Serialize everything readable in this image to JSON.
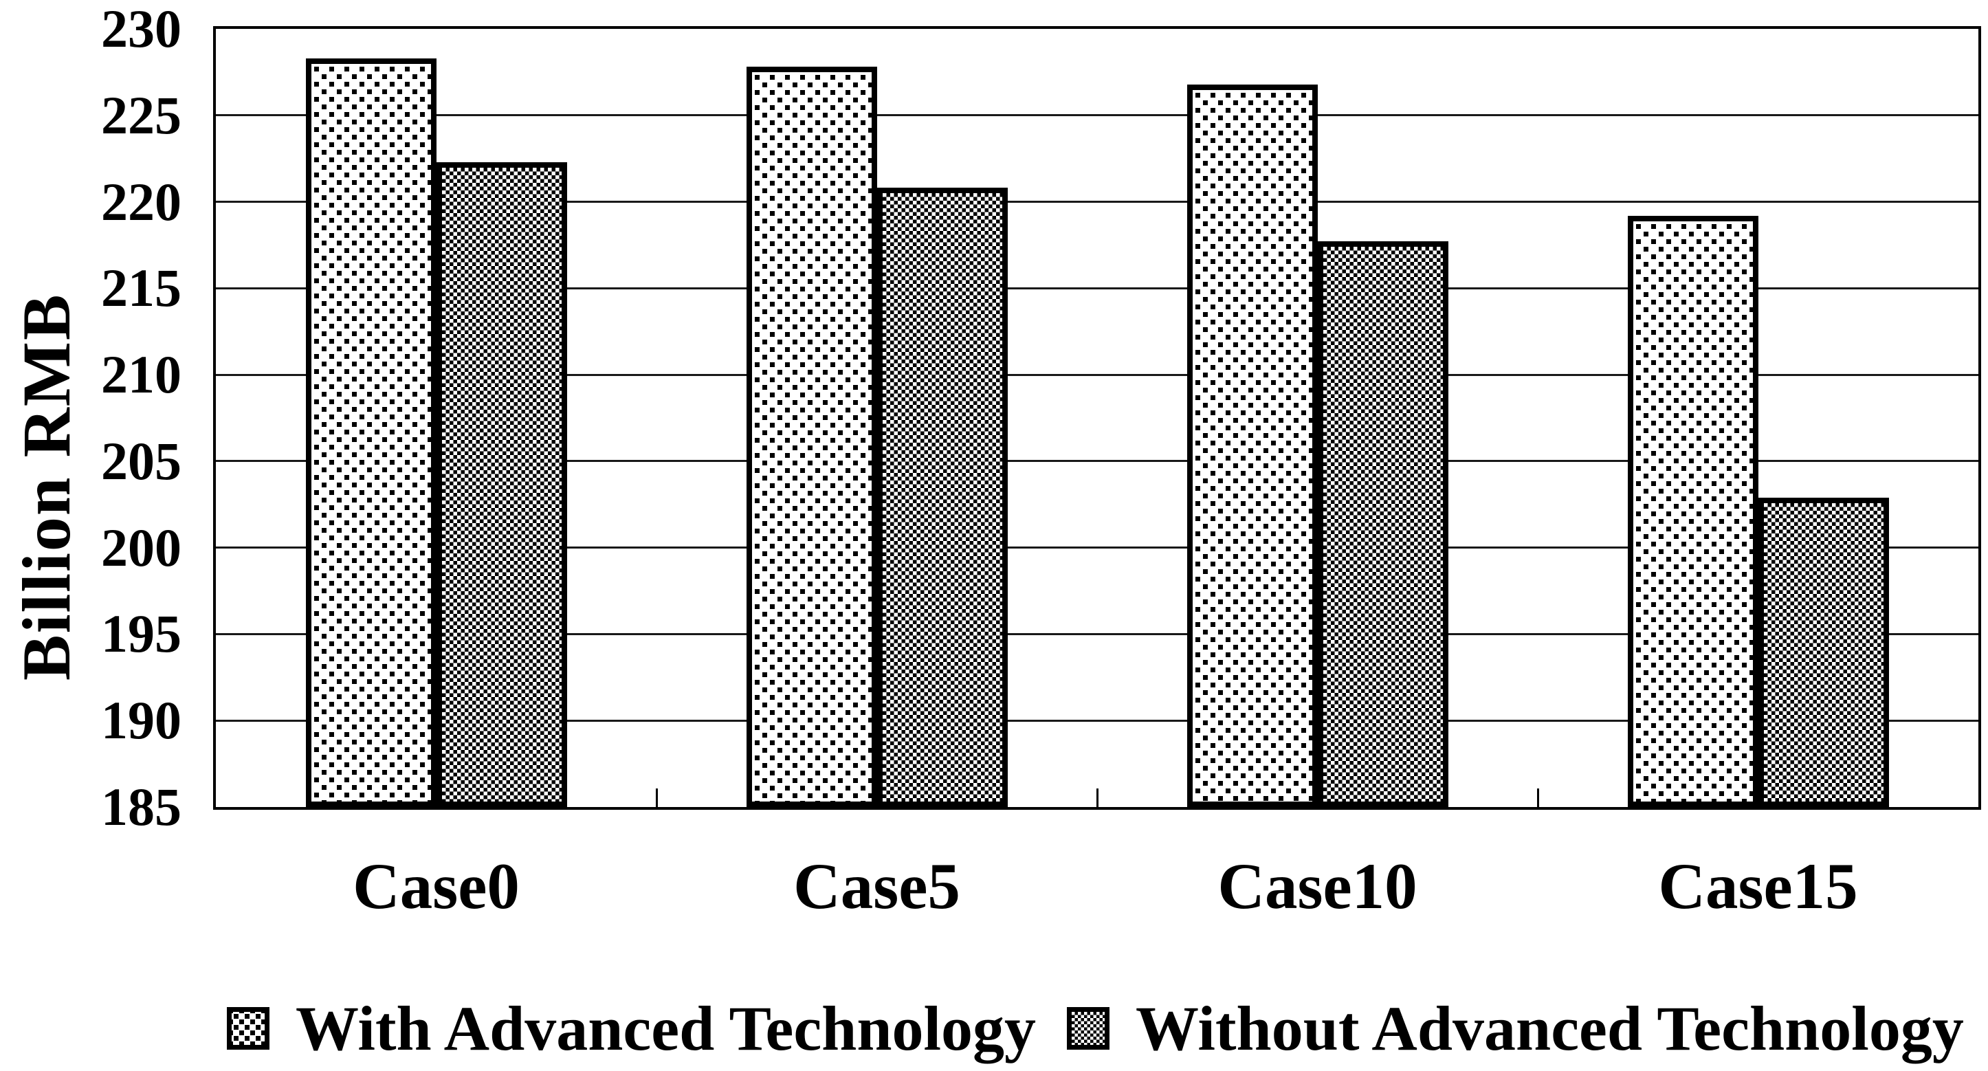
{
  "y_axis_title": "Billion RMB",
  "chart_data": {
    "type": "bar",
    "title": "",
    "xlabel": "",
    "ylabel": "Billion RMB",
    "categories": [
      "Case0",
      "Case5",
      "Case10",
      "Case15"
    ],
    "series": [
      {
        "name": "With Advanced Technology",
        "pattern": "dots",
        "values": [
          228.3,
          227.8,
          226.8,
          219.2
        ]
      },
      {
        "name": "Without Advanced Technology",
        "pattern": "check",
        "values": [
          222.3,
          220.8,
          217.7,
          202.9
        ]
      }
    ],
    "ylim": [
      185,
      230
    ],
    "ytick_step": 5,
    "yticks": [
      230,
      225,
      220,
      215,
      210,
      205,
      200,
      195,
      190,
      185
    ],
    "grid": "horizontal",
    "legend_position": "bottom",
    "colors": {
      "foreground": "#000000",
      "background": "#ffffff"
    }
  }
}
